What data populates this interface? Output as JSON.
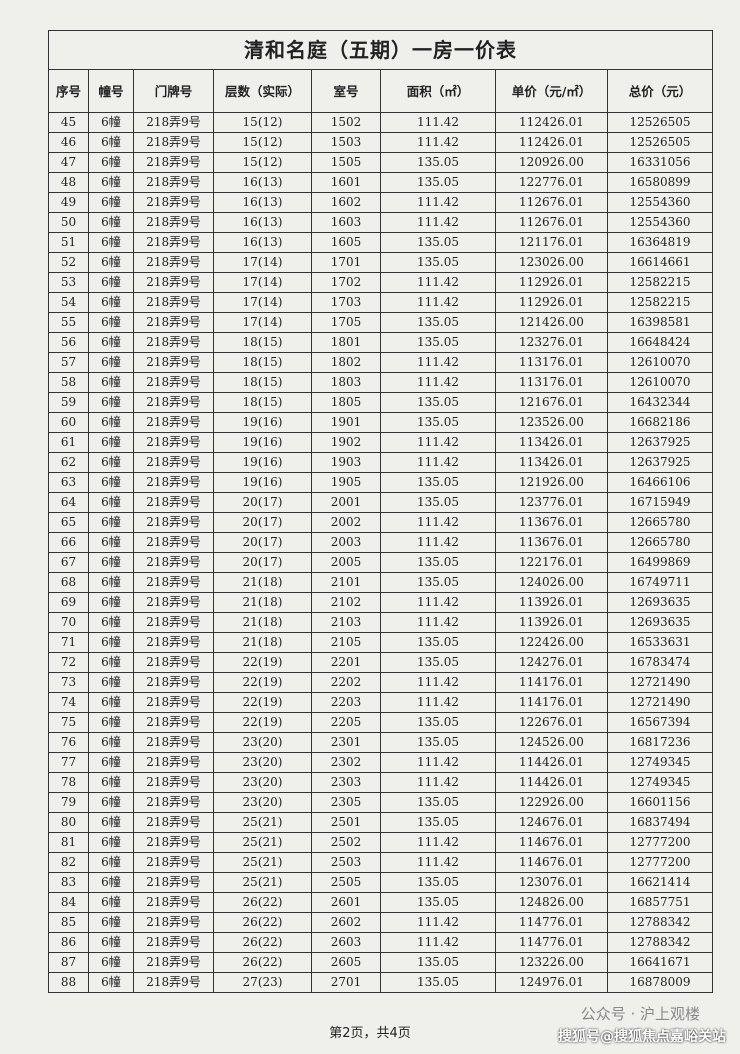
{
  "document": {
    "title": "清和名庭（五期）一房一价表",
    "headers": [
      "序号",
      "幢号",
      "门牌号",
      "层数（实际）",
      "室号",
      "面积（㎡）",
      "单价（元/㎡）",
      "总价（元）"
    ],
    "rows": [
      [
        "45",
        "6幢",
        "218弄9号",
        "15(12)",
        "1502",
        "111.42",
        "112426.01",
        "12526505"
      ],
      [
        "46",
        "6幢",
        "218弄9号",
        "15(12)",
        "1503",
        "111.42",
        "112426.01",
        "12526505"
      ],
      [
        "47",
        "6幢",
        "218弄9号",
        "15(12)",
        "1505",
        "135.05",
        "120926.00",
        "16331056"
      ],
      [
        "48",
        "6幢",
        "218弄9号",
        "16(13)",
        "1601",
        "135.05",
        "122776.01",
        "16580899"
      ],
      [
        "49",
        "6幢",
        "218弄9号",
        "16(13)",
        "1602",
        "111.42",
        "112676.01",
        "12554360"
      ],
      [
        "50",
        "6幢",
        "218弄9号",
        "16(13)",
        "1603",
        "111.42",
        "112676.01",
        "12554360"
      ],
      [
        "51",
        "6幢",
        "218弄9号",
        "16(13)",
        "1605",
        "135.05",
        "121176.01",
        "16364819"
      ],
      [
        "52",
        "6幢",
        "218弄9号",
        "17(14)",
        "1701",
        "135.05",
        "123026.00",
        "16614661"
      ],
      [
        "53",
        "6幢",
        "218弄9号",
        "17(14)",
        "1702",
        "111.42",
        "112926.01",
        "12582215"
      ],
      [
        "54",
        "6幢",
        "218弄9号",
        "17(14)",
        "1703",
        "111.42",
        "112926.01",
        "12582215"
      ],
      [
        "55",
        "6幢",
        "218弄9号",
        "17(14)",
        "1705",
        "135.05",
        "121426.00",
        "16398581"
      ],
      [
        "56",
        "6幢",
        "218弄9号",
        "18(15)",
        "1801",
        "135.05",
        "123276.01",
        "16648424"
      ],
      [
        "57",
        "6幢",
        "218弄9号",
        "18(15)",
        "1802",
        "111.42",
        "113176.01",
        "12610070"
      ],
      [
        "58",
        "6幢",
        "218弄9号",
        "18(15)",
        "1803",
        "111.42",
        "113176.01",
        "12610070"
      ],
      [
        "59",
        "6幢",
        "218弄9号",
        "18(15)",
        "1805",
        "135.05",
        "121676.01",
        "16432344"
      ],
      [
        "60",
        "6幢",
        "218弄9号",
        "19(16)",
        "1901",
        "135.05",
        "123526.00",
        "16682186"
      ],
      [
        "61",
        "6幢",
        "218弄9号",
        "19(16)",
        "1902",
        "111.42",
        "113426.01",
        "12637925"
      ],
      [
        "62",
        "6幢",
        "218弄9号",
        "19(16)",
        "1903",
        "111.42",
        "113426.01",
        "12637925"
      ],
      [
        "63",
        "6幢",
        "218弄9号",
        "19(16)",
        "1905",
        "135.05",
        "121926.00",
        "16466106"
      ],
      [
        "64",
        "6幢",
        "218弄9号",
        "20(17)",
        "2001",
        "135.05",
        "123776.01",
        "16715949"
      ],
      [
        "65",
        "6幢",
        "218弄9号",
        "20(17)",
        "2002",
        "111.42",
        "113676.01",
        "12665780"
      ],
      [
        "66",
        "6幢",
        "218弄9号",
        "20(17)",
        "2003",
        "111.42",
        "113676.01",
        "12665780"
      ],
      [
        "67",
        "6幢",
        "218弄9号",
        "20(17)",
        "2005",
        "135.05",
        "122176.01",
        "16499869"
      ],
      [
        "68",
        "6幢",
        "218弄9号",
        "21(18)",
        "2101",
        "135.05",
        "124026.00",
        "16749711"
      ],
      [
        "69",
        "6幢",
        "218弄9号",
        "21(18)",
        "2102",
        "111.42",
        "113926.01",
        "12693635"
      ],
      [
        "70",
        "6幢",
        "218弄9号",
        "21(18)",
        "2103",
        "111.42",
        "113926.01",
        "12693635"
      ],
      [
        "71",
        "6幢",
        "218弄9号",
        "21(18)",
        "2105",
        "135.05",
        "122426.00",
        "16533631"
      ],
      [
        "72",
        "6幢",
        "218弄9号",
        "22(19)",
        "2201",
        "135.05",
        "124276.01",
        "16783474"
      ],
      [
        "73",
        "6幢",
        "218弄9号",
        "22(19)",
        "2202",
        "111.42",
        "114176.01",
        "12721490"
      ],
      [
        "74",
        "6幢",
        "218弄9号",
        "22(19)",
        "2203",
        "111.42",
        "114176.01",
        "12721490"
      ],
      [
        "75",
        "6幢",
        "218弄9号",
        "22(19)",
        "2205",
        "135.05",
        "122676.01",
        "16567394"
      ],
      [
        "76",
        "6幢",
        "218弄9号",
        "23(20)",
        "2301",
        "135.05",
        "124526.00",
        "16817236"
      ],
      [
        "77",
        "6幢",
        "218弄9号",
        "23(20)",
        "2302",
        "111.42",
        "114426.01",
        "12749345"
      ],
      [
        "78",
        "6幢",
        "218弄9号",
        "23(20)",
        "2303",
        "111.42",
        "114426.01",
        "12749345"
      ],
      [
        "79",
        "6幢",
        "218弄9号",
        "23(20)",
        "2305",
        "135.05",
        "122926.00",
        "16601156"
      ],
      [
        "80",
        "6幢",
        "218弄9号",
        "25(21)",
        "2501",
        "135.05",
        "124676.01",
        "16837494"
      ],
      [
        "81",
        "6幢",
        "218弄9号",
        "25(21)",
        "2502",
        "111.42",
        "114676.01",
        "12777200"
      ],
      [
        "82",
        "6幢",
        "218弄9号",
        "25(21)",
        "2503",
        "111.42",
        "114676.01",
        "12777200"
      ],
      [
        "83",
        "6幢",
        "218弄9号",
        "25(21)",
        "2505",
        "135.05",
        "123076.01",
        "16621414"
      ],
      [
        "84",
        "6幢",
        "218弄9号",
        "26(22)",
        "2601",
        "135.05",
        "124826.00",
        "16857751"
      ],
      [
        "85",
        "6幢",
        "218弄9号",
        "26(22)",
        "2602",
        "111.42",
        "114776.01",
        "12788342"
      ],
      [
        "86",
        "6幢",
        "218弄9号",
        "26(22)",
        "2603",
        "111.42",
        "114776.01",
        "12788342"
      ],
      [
        "87",
        "6幢",
        "218弄9号",
        "26(22)",
        "2605",
        "135.05",
        "123226.00",
        "16641671"
      ],
      [
        "88",
        "6幢",
        "218弄9号",
        "27(23)",
        "2701",
        "135.05",
        "124976.01",
        "16878009"
      ]
    ],
    "footer": "第2页，共4页",
    "watermarks": [
      "公众号 · 沪上观楼",
      "搜狐号@搜狐焦点嘉峪关站"
    ]
  }
}
